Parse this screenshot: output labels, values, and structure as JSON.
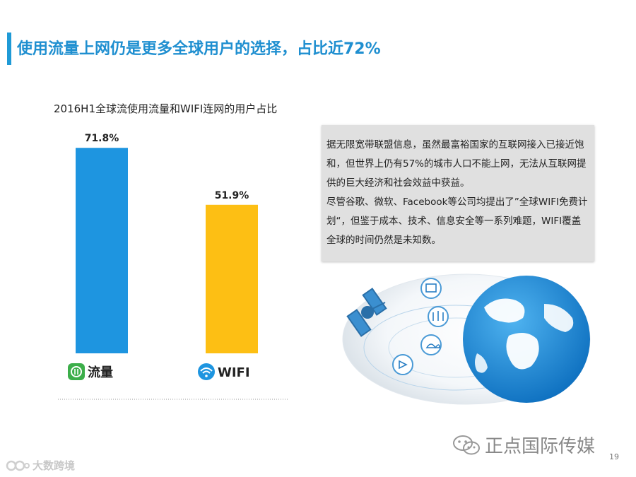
{
  "slide": {
    "title": "使用流量上网仍是更多全球用户的选择，占比近72%",
    "page_number": "19"
  },
  "chart_data": {
    "type": "bar",
    "title": "2016H1全球流使用流量和WIFI连网的用户占比",
    "categories": [
      "流量",
      "WIFI"
    ],
    "values": [
      71.8,
      51.9
    ],
    "value_labels": [
      "71.8%",
      "51.9%"
    ],
    "colors": [
      "#1e95e0",
      "#fdbf14"
    ],
    "ylim": [
      0,
      100
    ],
    "grid": false,
    "legend": "none",
    "category_icons": [
      "traffic-app-icon",
      "wifi-icon"
    ]
  },
  "info": {
    "paragraph1": "据无限宽带联盟信息，虽然最富裕国家的互联网接入已接近饱和，但世界上仍有57%的城市人口不能上网，无法从互联网提供的巨大经济和社会效益中获益。",
    "paragraph2": "尽管谷歌、微软、Facebook等公司均提出了”全球WIFI免费计划“，但鉴于成本、技术、信息安全等一系列难题，WIFI覆盖全球的时间仍然是未知数。"
  },
  "footer": {
    "brand": "正点国际传媒",
    "brand_icon": "wechat-icon",
    "watermark": "大数跨境"
  },
  "colors": {
    "title": "#1f8fd0",
    "accent_bar": "#1f9ad6",
    "info_box": "#e0e0e0"
  }
}
